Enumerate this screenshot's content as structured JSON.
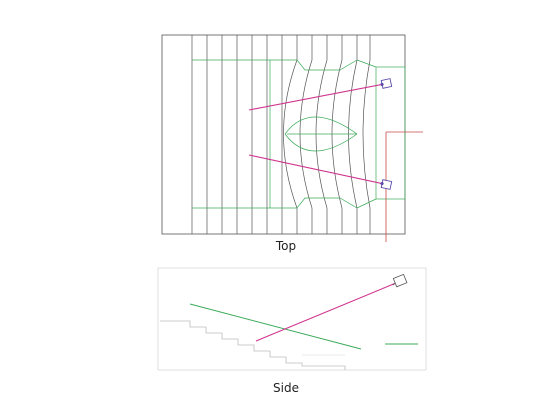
{
  "views": {
    "top": {
      "label": "Top"
    },
    "side": {
      "label": "Side"
    }
  },
  "colors": {
    "outline": "#555555",
    "guide_green": "#3cab5a",
    "ray_magenta": "#d0338f",
    "marker_red": "#c84a4a",
    "step_gray": "#bdbdbd",
    "frame_light": "#d8d8d8",
    "device_purple": "#5b4aa8"
  },
  "icons": {
    "projector_top_a": "projector-icon",
    "projector_top_b": "projector-icon",
    "projector_side": "projector-icon"
  }
}
